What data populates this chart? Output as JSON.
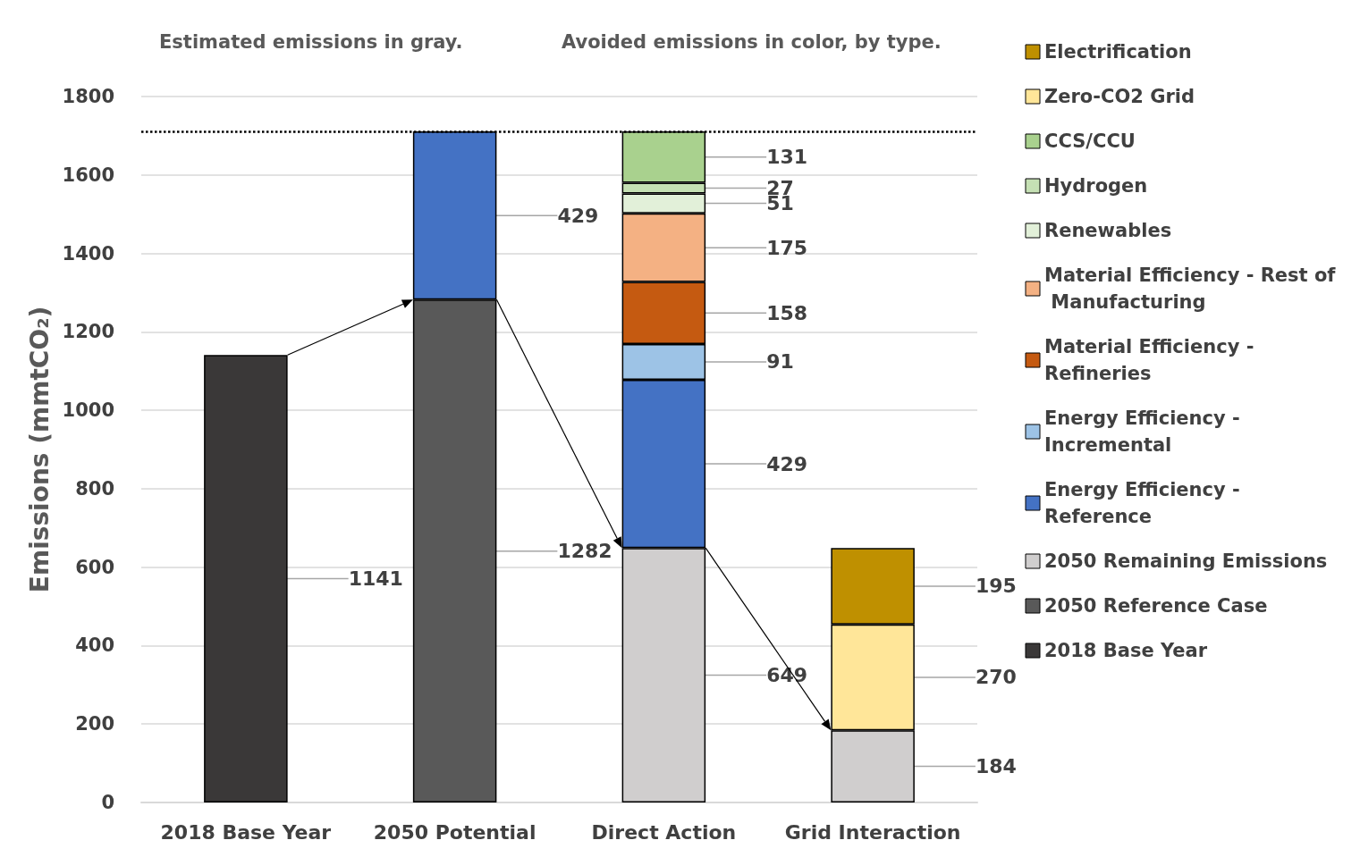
{
  "chart_data": {
    "type": "bar",
    "stacked": true,
    "annotations": [
      "Estimated emissions in gray.",
      "Avoided emissions in color, by type."
    ],
    "ylabel": "Emissions (mmtCO₂)",
    "categories": [
      "2018 Base Year",
      "2050 Potential",
      "Direct Action",
      "Grid Interaction"
    ],
    "series": [
      {
        "name": "2018 Base Year",
        "color": "#3a3838",
        "values": [
          1141,
          null,
          null,
          null
        ]
      },
      {
        "name": "2050 Reference Case",
        "color": "#595959",
        "values": [
          null,
          1282,
          null,
          null
        ]
      },
      {
        "name": "2050 Remaining Emissions",
        "color": "#d0cece",
        "values": [
          null,
          null,
          649,
          184
        ]
      },
      {
        "name": "Energy Efficiency - Reference",
        "color": "#4472c4",
        "values": [
          null,
          429,
          429,
          null
        ]
      },
      {
        "name": "Energy Efficiency - Incremental",
        "color": "#9dc3e6",
        "values": [
          null,
          null,
          91,
          null
        ]
      },
      {
        "name": "Material Efficiency - Refineries",
        "color": "#c55a11",
        "values": [
          null,
          null,
          158,
          null
        ]
      },
      {
        "name": "Material Efficiency - Rest of Manufacturing",
        "color": "#f4b183",
        "values": [
          null,
          null,
          175,
          null
        ]
      },
      {
        "name": "Renewables",
        "color": "#e2f0d9",
        "values": [
          null,
          null,
          51,
          null
        ]
      },
      {
        "name": "Hydrogen",
        "color": "#c5e0b4",
        "values": [
          null,
          null,
          27,
          null
        ]
      },
      {
        "name": "CCS/CCU",
        "color": "#a9d18e",
        "values": [
          null,
          null,
          131,
          null
        ]
      },
      {
        "name": "Zero-CO2 Grid",
        "color": "#ffe699",
        "values": [
          null,
          null,
          null,
          270
        ]
      },
      {
        "name": "Electrification",
        "color": "#bf9000",
        "values": [
          null,
          null,
          null,
          195
        ]
      }
    ],
    "ylim": [
      0,
      1800
    ],
    "yticks": [
      0,
      200,
      400,
      600,
      800,
      1000,
      1200,
      1400,
      1600,
      1800
    ],
    "ref_lines": [
      {
        "axis": "y",
        "value": 1711,
        "line_style": "dotted",
        "color": "#000000"
      }
    ],
    "grid": "y",
    "legend": "right",
    "data_labels": true
  }
}
